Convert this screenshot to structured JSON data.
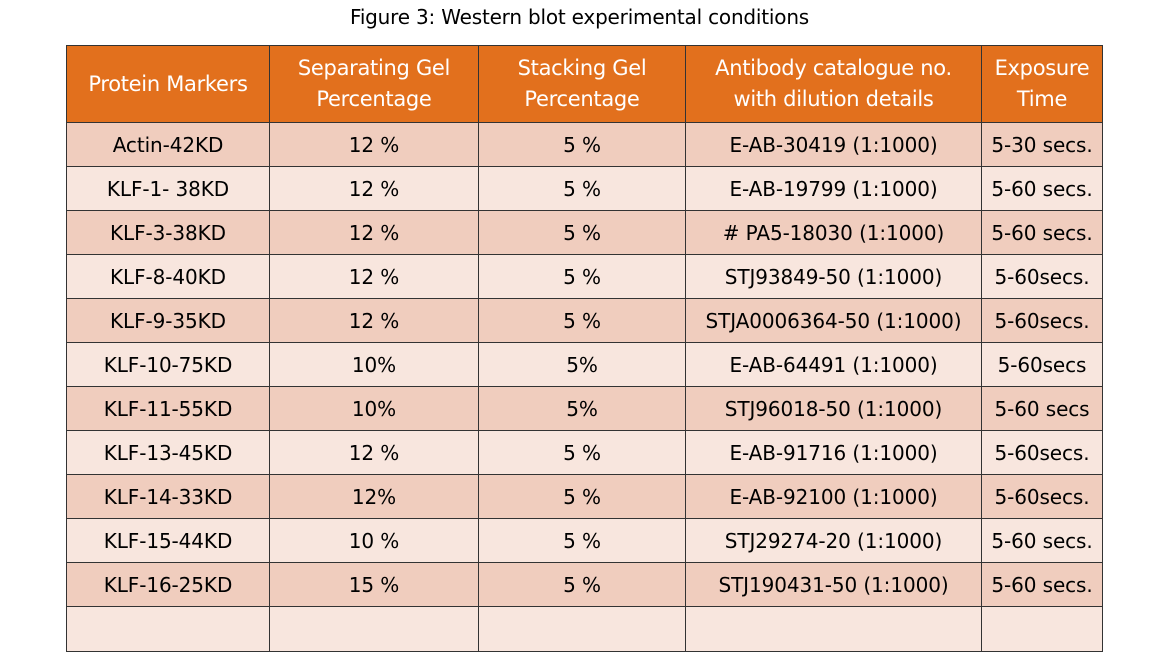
{
  "caption": "Figure 3: Western blot experimental conditions",
  "columns": [
    {
      "line1": "Protein Markers",
      "line2": ""
    },
    {
      "line1": "Separating Gel",
      "line2": "Percentage"
    },
    {
      "line1": "Stacking Gel",
      "line2": "Percentage"
    },
    {
      "line1": "Antibody catalogue no.",
      "line2": "with dilution details"
    },
    {
      "line1": "Exposure",
      "line2": "Time"
    }
  ],
  "rows": [
    [
      "Actin-42KD",
      "12 %",
      "5 %",
      "E-AB-30419 (1:1000)",
      "5-30 secs."
    ],
    [
      "KLF-1- 38KD",
      "12 %",
      "5 %",
      "E-AB-19799 (1:1000)",
      "5-60 secs."
    ],
    [
      "KLF-3-38KD",
      "12 %",
      "5 %",
      "# PA5-18030 (1:1000)",
      "5-60 secs."
    ],
    [
      "KLF-8-40KD",
      "12 %",
      "5 %",
      "STJ93849-50 (1:1000)",
      "5-60secs."
    ],
    [
      "KLF-9-35KD",
      "12 %",
      "5 %",
      "STJA0006364-50 (1:1000)",
      "5-60secs."
    ],
    [
      "KLF-10-75KD",
      "10%",
      "5%",
      "E-AB-64491 (1:1000)",
      "5-60secs"
    ],
    [
      "KLF-11-55KD",
      "10%",
      "5%",
      "STJ96018-50 (1:1000)",
      "5-60 secs"
    ],
    [
      "KLF-13-45KD",
      "12 %",
      "5 %",
      "E-AB-91716 (1:1000)",
      "5-60secs."
    ],
    [
      "KLF-14-33KD",
      "12%",
      "5 %",
      "E-AB-92100 (1:1000)",
      "5-60secs."
    ],
    [
      "KLF-15-44KD",
      "10 %",
      "5 %",
      "STJ29274-20 (1:1000)",
      "5-60 secs."
    ],
    [
      "KLF-16-25KD",
      "15 %",
      "5 %",
      "STJ190431-50 (1:1000)",
      "5-60 secs."
    ],
    [
      "",
      "",
      "",
      "",
      ""
    ]
  ],
  "colors": {
    "header_bg": "#e2701d",
    "header_text": "#ffffff",
    "row_dark": "#f0cdbe",
    "row_light": "#f8e6de",
    "border": "#333333"
  }
}
